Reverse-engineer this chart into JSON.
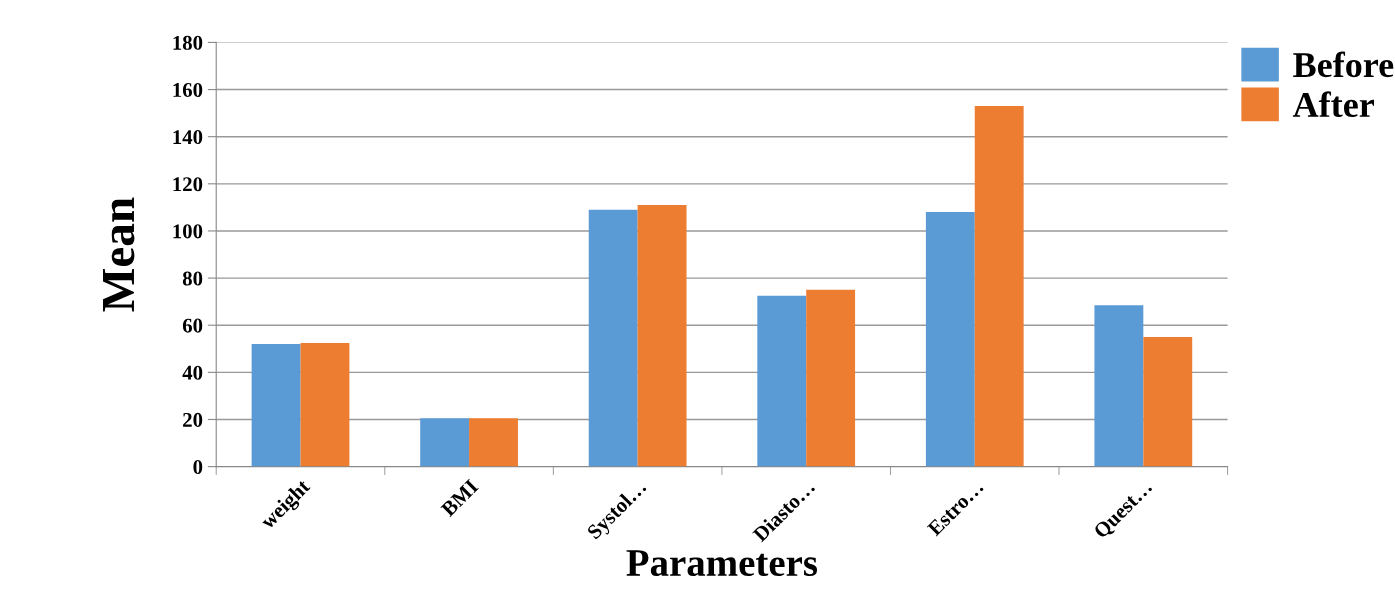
{
  "chart_data": {
    "type": "bar",
    "xlabel": "Parameters",
    "ylabel": "Mean",
    "categories": [
      "weight",
      "BMI",
      "Systol…",
      "Diasto…",
      "Estro…",
      "Quest…"
    ],
    "series": [
      {
        "name": "Before",
        "color": "#5b9bd5",
        "values": [
          52,
          20.5,
          109,
          72.5,
          108,
          68.5
        ]
      },
      {
        "name": "After",
        "color": "#ed7d31",
        "values": [
          52.5,
          20.5,
          111,
          75,
          153,
          55
        ]
      }
    ],
    "ylim": [
      0,
      180
    ],
    "yticks": [
      0,
      20,
      40,
      60,
      80,
      100,
      120,
      140,
      160,
      180
    ],
    "grid": "y",
    "legend": "top right"
  }
}
